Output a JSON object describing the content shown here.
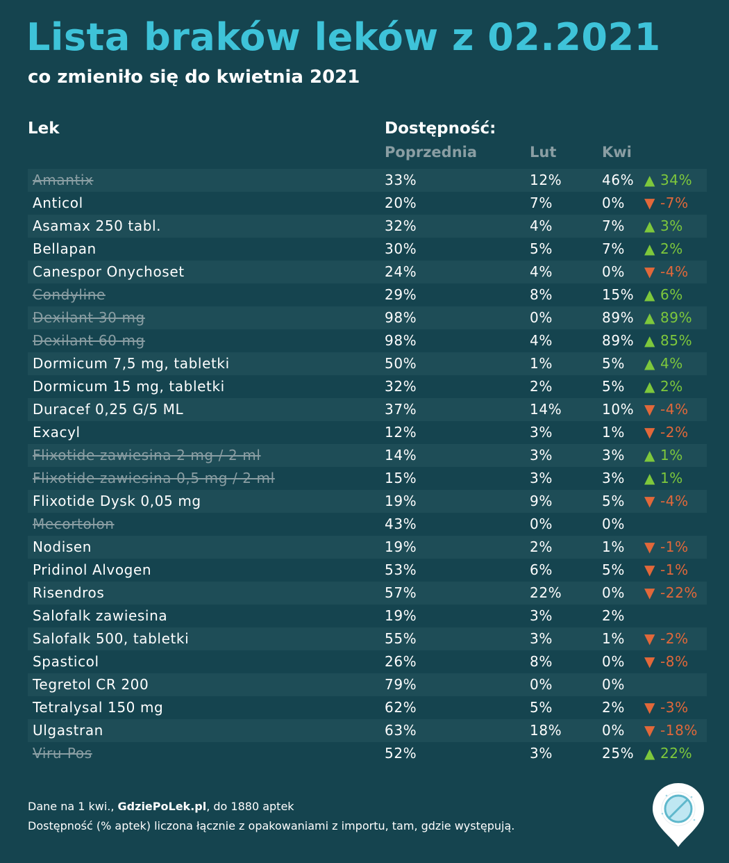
{
  "header": {
    "title": "Lista braków leków z 02.2021",
    "subtitle": "co zmieniło się do kwietnia 2021"
  },
  "columns": {
    "lek": "Lek",
    "dostepnosc": "Dostępność:",
    "poprzednia": "Poprzednia",
    "lut": "Lut",
    "kwi": "Kwi"
  },
  "colors": {
    "background": "#15444f",
    "title": "#3ec3d9",
    "stripe": "#1e4d57",
    "up": "#7ec83c",
    "down": "#e2683a",
    "muted": "#8a9ea3"
  },
  "rows": [
    {
      "name": "Amantix",
      "struck": true,
      "prev": "33%",
      "lut": "12%",
      "kwi": "46%",
      "change": "▲ 34%",
      "dir": "up"
    },
    {
      "name": "Anticol",
      "struck": false,
      "prev": "20%",
      "lut": "7%",
      "kwi": "0%",
      "change": "▼ -7%",
      "dir": "down"
    },
    {
      "name": "Asamax 250 tabl.",
      "struck": false,
      "prev": "32%",
      "lut": "4%",
      "kwi": "7%",
      "change": "▲ 3%",
      "dir": "up"
    },
    {
      "name": "Bellapan",
      "struck": false,
      "prev": "30%",
      "lut": "5%",
      "kwi": "7%",
      "change": "▲ 2%",
      "dir": "up"
    },
    {
      "name": "Canespor Onychoset",
      "struck": false,
      "prev": "24%",
      "lut": "4%",
      "kwi": "0%",
      "change": "▼ -4%",
      "dir": "down"
    },
    {
      "name": "Condyline",
      "struck": true,
      "prev": "29%",
      "lut": "8%",
      "kwi": "15%",
      "change": "▲ 6%",
      "dir": "up"
    },
    {
      "name": "Dexilant 30 mg",
      "struck": true,
      "prev": "98%",
      "lut": "0%",
      "kwi": "89%",
      "change": "▲ 89%",
      "dir": "up"
    },
    {
      "name": "Dexilant 60 mg",
      "struck": true,
      "prev": "98%",
      "lut": "4%",
      "kwi": "89%",
      "change": "▲ 85%",
      "dir": "up"
    },
    {
      "name": "Dormicum 7,5 mg, tabletki",
      "struck": false,
      "prev": "50%",
      "lut": "1%",
      "kwi": "5%",
      "change": "▲ 4%",
      "dir": "up"
    },
    {
      "name": "Dormicum 15 mg, tabletki",
      "struck": false,
      "prev": "32%",
      "lut": "2%",
      "kwi": "5%",
      "change": "▲ 2%",
      "dir": "up"
    },
    {
      "name": "Duracef 0,25 G/5 ML",
      "struck": false,
      "prev": "37%",
      "lut": "14%",
      "kwi": "10%",
      "change": "▼ -4%",
      "dir": "down"
    },
    {
      "name": "Exacyl",
      "struck": false,
      "prev": "12%",
      "lut": "3%",
      "kwi": "1%",
      "change": "▼ -2%",
      "dir": "down"
    },
    {
      "name": "Flixotide zawiesina 2 mg / 2 ml",
      "struck": true,
      "prev": "14%",
      "lut": "3%",
      "kwi": "3%",
      "change": "▲ 1%",
      "dir": "up"
    },
    {
      "name": "Flixotide zawiesina 0,5 mg / 2 ml",
      "struck": true,
      "prev": "15%",
      "lut": "3%",
      "kwi": "3%",
      "change": "▲ 1%",
      "dir": "up"
    },
    {
      "name": "Flixotide Dysk 0,05 mg",
      "struck": false,
      "prev": "19%",
      "lut": "9%",
      "kwi": "5%",
      "change": "▼ -4%",
      "dir": "down"
    },
    {
      "name": "Mecortolon",
      "struck": true,
      "prev": "43%",
      "lut": "0%",
      "kwi": "0%",
      "change": "",
      "dir": ""
    },
    {
      "name": "Nodisen",
      "struck": false,
      "prev": "19%",
      "lut": "2%",
      "kwi": "1%",
      "change": "▼ -1%",
      "dir": "down"
    },
    {
      "name": "Pridinol Alvogen",
      "struck": false,
      "prev": "53%",
      "lut": "6%",
      "kwi": "5%",
      "change": "▼ -1%",
      "dir": "down"
    },
    {
      "name": "Risendros",
      "struck": false,
      "prev": "57%",
      "lut": "22%",
      "kwi": "0%",
      "change": "▼ -22%",
      "dir": "down"
    },
    {
      "name": "Salofalk zawiesina",
      "struck": false,
      "prev": "19%",
      "lut": "3%",
      "kwi": "2%",
      "change": "",
      "dir": ""
    },
    {
      "name": "Salofalk 500, tabletki",
      "struck": false,
      "prev": "55%",
      "lut": "3%",
      "kwi": "1%",
      "change": "▼ -2%",
      "dir": "down"
    },
    {
      "name": "Spasticol",
      "struck": false,
      "prev": "26%",
      "lut": "8%",
      "kwi": "0%",
      "change": "▼ -8%",
      "dir": "down"
    },
    {
      "name": "Tegretol CR 200",
      "struck": false,
      "prev": "79%",
      "lut": "0%",
      "kwi": "0%",
      "change": "",
      "dir": ""
    },
    {
      "name": "Tetralysal 150 mg",
      "struck": false,
      "prev": "62%",
      "lut": "5%",
      "kwi": "2%",
      "change": "▼ -3%",
      "dir": "down"
    },
    {
      "name": "Ulgastran",
      "struck": false,
      "prev": "63%",
      "lut": "18%",
      "kwi": "0%",
      "change": "▼ -18%",
      "dir": "down"
    },
    {
      "name": "Viru-Pos",
      "struck": true,
      "prev": "52%",
      "lut": "3%",
      "kwi": "25%",
      "change": "▲ 22%",
      "dir": "up"
    }
  ],
  "footer": {
    "line1_prefix": "Dane na 1 kwi., ",
    "line1_brand": "GdziePoLek.pl",
    "line1_suffix": ", do 1880 aptek",
    "line2": "Dostępność (% aptek) liczona łącznie z opakowaniami z importu, tam, gdzie występują."
  },
  "logo": {
    "icon": "pill-pin-icon"
  }
}
